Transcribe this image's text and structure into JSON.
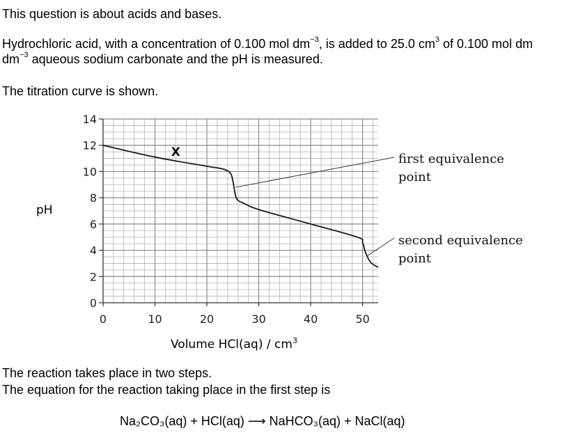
{
  "question": {
    "intro": "This question is about acids and bases.",
    "para_a": "Hydrochloric acid, with a concentration of 0.100 mol dm",
    "para_a_sup": "−3",
    "para_b": ", is added to 25.0 cm",
    "para_b_sup": "3",
    "para_c": " of 0.100 mol dm",
    "para_c_sup": "−3",
    "para_d": " aqueous sodium carbonate and the pH is measured.",
    "curve_shown": "The titration curve is shown.",
    "steps_1": "The reaction takes place in two steps.",
    "steps_2": "The equation for the reaction taking place in the first step is",
    "equation": "Na₂CO₃(aq)  +  HCl(aq)  ⟶  NaHCO₃(aq)  +  NaCl(aq)"
  },
  "chart_data": {
    "type": "line",
    "ylabel": "pH",
    "xlabel": "Volume HCl(aq) / cm",
    "xlabel_sup": "3",
    "xlim": [
      0,
      53
    ],
    "ylim": [
      0,
      14
    ],
    "x_ticks": [
      0,
      10,
      20,
      30,
      40,
      50
    ],
    "y_ticks": [
      0,
      2,
      4,
      6,
      8,
      10,
      12,
      14
    ],
    "grid": true,
    "series": [
      {
        "x": [
          0,
          10,
          20,
          23,
          24.5,
          25,
          25.5,
          26,
          27,
          30,
          40,
          49,
          50,
          50.5,
          51.5,
          53
        ],
        "y": [
          12,
          11.1,
          10.4,
          10.2,
          9.9,
          9.3,
          8.2,
          7.8,
          7.6,
          7.1,
          6.0,
          5.0,
          4.6,
          3.9,
          3.1,
          2.7
        ]
      }
    ],
    "marker": {
      "label": "X",
      "x": 14,
      "y": 11.5
    },
    "annotations": [
      {
        "line1": "first equivalence",
        "line2": "point",
        "x": 25.5,
        "y": 8.8
      },
      {
        "line1": "second equivalence",
        "line2": "point",
        "x": 51,
        "y": 3.6
      }
    ]
  }
}
